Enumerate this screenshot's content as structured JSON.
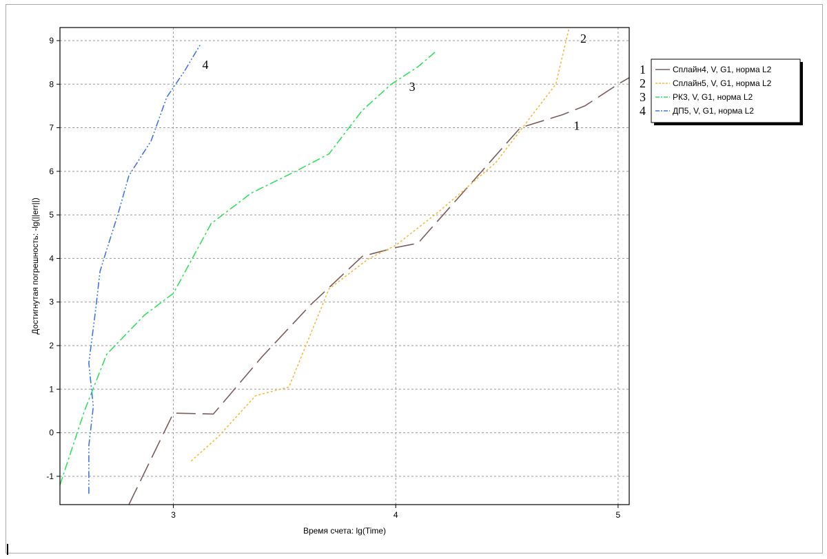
{
  "chart_data": {
    "type": "line",
    "xlabel": "Время счета: lg(Time)",
    "ylabel": "Достигнутая погрешность: -lg(||err||)",
    "xlim": [
      2.49,
      5.05
    ],
    "ylim": [
      -1.65,
      9.3
    ],
    "xticks": [
      3,
      4,
      5
    ],
    "yticks": [
      -1,
      0,
      1,
      2,
      3,
      4,
      5,
      6,
      7,
      8,
      9
    ],
    "grid": true,
    "legend_position": "right",
    "series": [
      {
        "name": "Сплайн4, V, G1, норма L2",
        "number": "1",
        "color": "#7a5c5c",
        "dash": "28 10",
        "x": [
          2.8,
          3.0,
          3.18,
          3.4,
          3.62,
          3.85,
          4.0,
          4.1,
          4.3,
          4.56,
          4.75,
          4.85,
          5.0,
          5.05
        ],
        "y": [
          -1.65,
          0.45,
          0.43,
          1.75,
          2.95,
          4.05,
          4.25,
          4.35,
          5.5,
          7.0,
          7.3,
          7.5,
          8.0,
          8.15
        ]
      },
      {
        "name": "Сплайн5, V, G1, норма L2",
        "number": "2",
        "color": "#f5b93c",
        "dash": "3 3",
        "x": [
          3.08,
          3.2,
          3.37,
          3.52,
          3.7,
          3.88,
          4.0,
          4.2,
          4.45,
          4.6,
          4.72,
          4.78
        ],
        "y": [
          -0.65,
          -0.1,
          0.85,
          1.05,
          3.3,
          4.0,
          4.3,
          5.1,
          6.2,
          7.2,
          8.0,
          9.3
        ]
      },
      {
        "name": "РК3, V, G1, норма L2",
        "number": "3",
        "color": "#33e05a",
        "dash": "12 4 3 4",
        "x": [
          2.49,
          2.6,
          2.7,
          2.87,
          3.0,
          3.17,
          3.35,
          3.55,
          3.7,
          3.85,
          3.98,
          4.1,
          4.18
        ],
        "y": [
          -1.2,
          0.5,
          1.8,
          2.7,
          3.2,
          4.8,
          5.5,
          6.0,
          6.4,
          7.4,
          8.0,
          8.4,
          8.75
        ]
      },
      {
        "name": "ДП5, V, G1, норма L2",
        "number": "4",
        "color": "#3f74ea",
        "dash": "10 3 2 3 2 3",
        "x": [
          2.62,
          2.62,
          2.64,
          2.62,
          2.65,
          2.67,
          2.7,
          2.75,
          2.8,
          2.9,
          2.97,
          3.05,
          3.12
        ],
        "y": [
          -1.4,
          -0.3,
          0.6,
          1.6,
          2.8,
          3.7,
          4.2,
          5.0,
          5.9,
          6.7,
          7.7,
          8.3,
          8.9
        ]
      }
    ],
    "curve_labels": [
      {
        "text": "1",
        "x": 4.8,
        "y": 6.95
      },
      {
        "text": "2",
        "x": 4.83,
        "y": 8.95
      },
      {
        "text": "3",
        "x": 4.06,
        "y": 7.85
      },
      {
        "text": "4",
        "x": 3.13,
        "y": 8.35
      }
    ]
  }
}
